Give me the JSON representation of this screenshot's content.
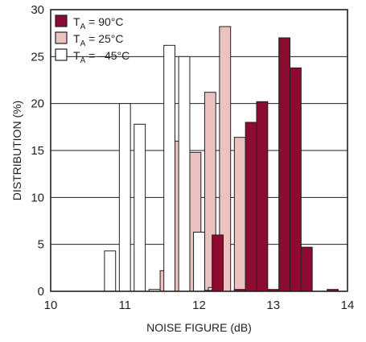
{
  "chart_data": {
    "type": "bar",
    "xlabel": "NOISE FIGURE (dB)",
    "ylabel": "DISTRIBUTION (%)",
    "xlim": [
      10,
      14
    ],
    "ylim": [
      0,
      30
    ],
    "x_ticks": [
      "10",
      "11",
      "12",
      "13",
      "14"
    ],
    "y_ticks": [
      "0",
      "5",
      "10",
      "15",
      "20",
      "25",
      "30"
    ],
    "bin_width": 0.15,
    "grid": true,
    "legend_position": "top-left",
    "series": [
      {
        "name": "T_A = 90°C",
        "name_main": "T",
        "name_sub": "A",
        "name_rest": " = 90°C",
        "color": "#8c0b30",
        "stroke": "#231f20",
        "x": [
          12.15,
          12.25,
          12.55,
          12.7,
          12.85,
          13.0,
          13.15,
          13.3,
          13.45,
          13.8
        ],
        "values": [
          0.1,
          6.0,
          0.2,
          18.0,
          20.2,
          0.2,
          27.0,
          23.8,
          4.7,
          0.2
        ]
      },
      {
        "name": "T_A = 25°C",
        "name_main": "T",
        "name_sub": "A",
        "name_rest": " = 25°C",
        "color": "#ebc2c0",
        "stroke": "#231f20",
        "x": [
          11.55,
          11.75,
          11.95,
          12.15,
          12.35,
          12.55,
          12.75
        ],
        "values": [
          2.2,
          16.0,
          14.8,
          21.2,
          28.2,
          16.4,
          1.1
        ]
      },
      {
        "name": "T_A = –45°C",
        "name_main": "T",
        "name_sub": "A",
        "name_rest": " = –45°C",
        "color": "#ffffff",
        "stroke": "#231f20",
        "x": [
          10.8,
          11.0,
          11.2,
          11.4,
          11.6,
          11.8,
          12.0,
          12.2
        ],
        "values": [
          4.3,
          20.0,
          17.8,
          0.2,
          26.2,
          25.0,
          6.3,
          0.4
        ]
      }
    ]
  }
}
